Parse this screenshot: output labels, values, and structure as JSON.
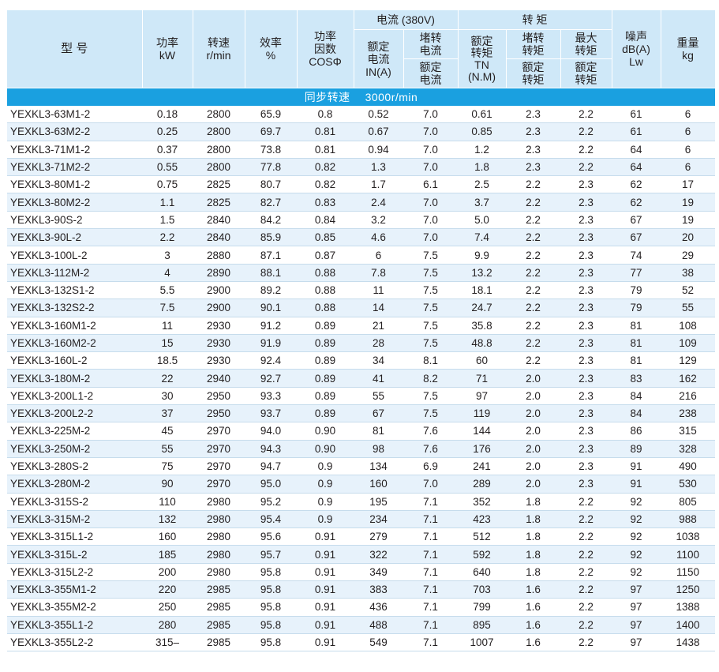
{
  "headers": {
    "model": "型 号",
    "power": "功率\nkW",
    "speed": "转速\nr/min",
    "efficiency": "效率\n%",
    "power_factor": "功率\n因数\nCOSΦ",
    "current_group": "电流 (380V)",
    "rated_current": "额定\n电流\nIN(A)",
    "locked_current_top": "堵转\n电流",
    "locked_current_bottom": "额定\n电流",
    "torque_group": "转 矩",
    "rated_torque": "额定\n转矩\nTN\n(N.M)",
    "locked_torque_top": "堵转\n转矩",
    "locked_torque_bottom": "额定\n转矩",
    "max_torque_top": "最大\n转矩",
    "max_torque_bottom": "额定\n转矩",
    "noise": "噪声\ndB(A)\nLw",
    "weight": "重量\nkg"
  },
  "section_title": "同步转速　 3000r/min",
  "rows": [
    [
      "YEXKL3-63M1-2",
      "0.18",
      "2800",
      "65.9",
      "0.8",
      "0.52",
      "7.0",
      "0.61",
      "2.3",
      "2.2",
      "61",
      "6"
    ],
    [
      "YEXKL3-63M2-2",
      "0.25",
      "2800",
      "69.7",
      "0.81",
      "0.67",
      "7.0",
      "0.85",
      "2.3",
      "2.2",
      "61",
      "6"
    ],
    [
      "YEXKL3-71M1-2",
      "0.37",
      "2800",
      "73.8",
      "0.81",
      "0.94",
      "7.0",
      "1.2",
      "2.3",
      "2.2",
      "64",
      "6"
    ],
    [
      "YEXKL3-71M2-2",
      "0.55",
      "2800",
      "77.8",
      "0.82",
      "1.3",
      "7.0",
      "1.8",
      "2.3",
      "2.2",
      "64",
      "6"
    ],
    [
      "YEXKL3-80M1-2",
      "0.75",
      "2825",
      "80.7",
      "0.82",
      "1.7",
      "6.1",
      "2.5",
      "2.2",
      "2.3",
      "62",
      "17"
    ],
    [
      "YEXKL3-80M2-2",
      "1.1",
      "2825",
      "82.7",
      "0.83",
      "2.4",
      "7.0",
      "3.7",
      "2.2",
      "2.3",
      "62",
      "19"
    ],
    [
      "YEXKL3-90S-2",
      "1.5",
      "2840",
      "84.2",
      "0.84",
      "3.2",
      "7.0",
      "5.0",
      "2.2",
      "2.3",
      "67",
      "19"
    ],
    [
      "YEXKL3-90L-2",
      "2.2",
      "2840",
      "85.9",
      "0.85",
      "4.6",
      "7.0",
      "7.4",
      "2.2",
      "2.3",
      "67",
      "20"
    ],
    [
      "YEXKL3-100L-2",
      "3",
      "2880",
      "87.1",
      "0.87",
      "6",
      "7.5",
      "9.9",
      "2.2",
      "2.3",
      "74",
      "29"
    ],
    [
      "YEXKL3-112M-2",
      "4",
      "2890",
      "88.1",
      "0.88",
      "7.8",
      "7.5",
      "13.2",
      "2.2",
      "2.3",
      "77",
      "38"
    ],
    [
      "YEXKL3-132S1-2",
      "5.5",
      "2900",
      "89.2",
      "0.88",
      "11",
      "7.5",
      "18.1",
      "2.2",
      "2.3",
      "79",
      "52"
    ],
    [
      "YEXKL3-132S2-2",
      "7.5",
      "2900",
      "90.1",
      "0.88",
      "14",
      "7.5",
      "24.7",
      "2.2",
      "2.3",
      "79",
      "55"
    ],
    [
      "YEXKL3-160M1-2",
      "11",
      "2930",
      "91.2",
      "0.89",
      "21",
      "7.5",
      "35.8",
      "2.2",
      "2.3",
      "81",
      "108"
    ],
    [
      "YEXKL3-160M2-2",
      "15",
      "2930",
      "91.9",
      "0.89",
      "28",
      "7.5",
      "48.8",
      "2.2",
      "2.3",
      "81",
      "109"
    ],
    [
      "YEXKL3-160L-2",
      "18.5",
      "2930",
      "92.4",
      "0.89",
      "34",
      "8.1",
      "60",
      "2.2",
      "2.3",
      "81",
      "129"
    ],
    [
      "YEXKL3-180M-2",
      "22",
      "2940",
      "92.7",
      "0.89",
      "41",
      "8.2",
      "71",
      "2.0",
      "2.3",
      "83",
      "162"
    ],
    [
      "YEXKL3-200L1-2",
      "30",
      "2950",
      "93.3",
      "0.89",
      "55",
      "7.5",
      "97",
      "2.0",
      "2.3",
      "84",
      "216"
    ],
    [
      "YEXKL3-200L2-2",
      "37",
      "2950",
      "93.7",
      "0.89",
      "67",
      "7.5",
      "119",
      "2.0",
      "2.3",
      "84",
      "238"
    ],
    [
      "YEXKL3-225M-2",
      "45",
      "2970",
      "94.0",
      "0.90",
      "81",
      "7.6",
      "144",
      "2.0",
      "2.3",
      "86",
      "315"
    ],
    [
      "YEXKL3-250M-2",
      "55",
      "2970",
      "94.3",
      "0.90",
      "98",
      "7.6",
      "176",
      "2.0",
      "2.3",
      "89",
      "328"
    ],
    [
      "YEXKL3-280S-2",
      "75",
      "2970",
      "94.7",
      "0.9",
      "134",
      "6.9",
      "241",
      "2.0",
      "2.3",
      "91",
      "490"
    ],
    [
      "YEXKL3-280M-2",
      "90",
      "2970",
      "95.0",
      "0.9",
      "160",
      "7.0",
      "289",
      "2.0",
      "2.3",
      "91",
      "530"
    ],
    [
      "YEXKL3-315S-2",
      "110",
      "2980",
      "95.2",
      "0.9",
      "195",
      "7.1",
      "352",
      "1.8",
      "2.2",
      "92",
      "805"
    ],
    [
      "YEXKL3-315M-2",
      "132",
      "2980",
      "95.4",
      "0.9",
      "234",
      "7.1",
      "423",
      "1.8",
      "2.2",
      "92",
      "988"
    ],
    [
      "YEXKL3-315L1-2",
      "160",
      "2980",
      "95.6",
      "0.91",
      "279",
      "7.1",
      "512",
      "1.8",
      "2.2",
      "92",
      "1038"
    ],
    [
      "YEXKL3-315L-2",
      "185",
      "2980",
      "95.7",
      "0.91",
      "322",
      "7.1",
      "592",
      "1.8",
      "2.2",
      "92",
      "1100"
    ],
    [
      "YEXKL3-315L2-2",
      "200",
      "2980",
      "95.8",
      "0.91",
      "349",
      "7.1",
      "640",
      "1.8",
      "2.2",
      "92",
      "1150"
    ],
    [
      "YEXKL3-355M1-2",
      "220",
      "2985",
      "95.8",
      "0.91",
      "383",
      "7.1",
      "703",
      "1.6",
      "2.2",
      "97",
      "1250"
    ],
    [
      "YEXKL3-355M2-2",
      "250",
      "2985",
      "95.8",
      "0.91",
      "436",
      "7.1",
      "799",
      "1.6",
      "2.2",
      "97",
      "1388"
    ],
    [
      "YEXKL3-355L1-2",
      "280",
      "2985",
      "95.8",
      "0.91",
      "488",
      "7.1",
      "895",
      "1.6",
      "2.2",
      "97",
      "1400"
    ],
    [
      "YEXKL3-355L2-2",
      "315–",
      "2985",
      "95.8",
      "0.91",
      "549",
      "7.1",
      "1007",
      "1.6",
      "2.2",
      "97",
      "1438"
    ]
  ]
}
